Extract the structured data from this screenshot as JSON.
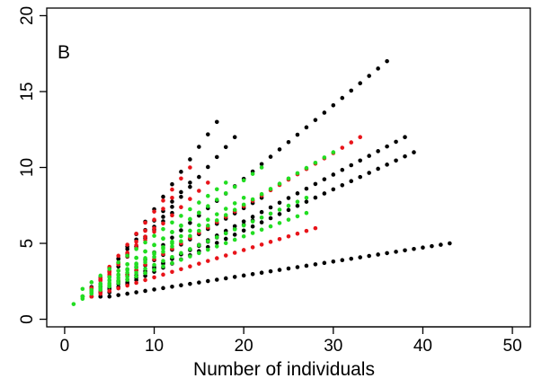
{
  "chart_data": {
    "type": "scatter",
    "panel_label": "B",
    "xlabel": "Number of individuals",
    "ylabel": "",
    "xlim": [
      -2,
      52
    ],
    "ylim": [
      -0.5,
      20.5
    ],
    "xticks": [
      0,
      10,
      20,
      30,
      40,
      50
    ],
    "yticks": [
      0,
      5,
      10,
      15,
      20
    ],
    "grid": false,
    "series": [
      {
        "color": "#000000",
        "lines": [
          {
            "x0": 5,
            "y0": 1.5,
            "x1": 43,
            "y1": 5,
            "n": 39
          },
          {
            "x0": 4,
            "y0": 1.5,
            "x1": 36,
            "y1": 17,
            "n": 33
          },
          {
            "x0": 4,
            "y0": 1.5,
            "x1": 38,
            "y1": 12,
            "n": 35
          },
          {
            "x0": 4,
            "y0": 1.5,
            "x1": 39,
            "y1": 11,
            "n": 36
          },
          {
            "x0": 3,
            "y0": 1.5,
            "x1": 19,
            "y1": 12,
            "n": 17
          },
          {
            "x0": 3,
            "y0": 1.5,
            "x1": 17,
            "y1": 13,
            "n": 15
          },
          {
            "x0": 3,
            "y0": 1.5,
            "x1": 22,
            "y1": 8,
            "n": 20
          },
          {
            "x0": 3,
            "y0": 1.5,
            "x1": 21,
            "y1": 6.5,
            "n": 19
          },
          {
            "x0": 2,
            "y0": 1.5,
            "x1": 14,
            "y1": 9,
            "n": 13
          },
          {
            "x0": 2,
            "y0": 1.5,
            "x1": 12,
            "y1": 7,
            "n": 11
          }
        ]
      },
      {
        "color": "#e8141a",
        "lines": [
          {
            "x0": 3,
            "y0": 1.5,
            "x1": 33,
            "y1": 12,
            "n": 31
          },
          {
            "x0": 3,
            "y0": 1.5,
            "x1": 28,
            "y1": 6,
            "n": 26
          },
          {
            "x0": 3,
            "y0": 2,
            "x1": 14,
            "y1": 10,
            "n": 12
          },
          {
            "x0": 3,
            "y0": 2,
            "x1": 16,
            "y1": 9,
            "n": 14
          },
          {
            "x0": 3,
            "y0": 1.5,
            "x1": 12,
            "y1": 8,
            "n": 10
          },
          {
            "x0": 2,
            "y0": 1.5,
            "x1": 10,
            "y1": 6,
            "n": 9
          }
        ]
      },
      {
        "color": "#22dd22",
        "lines": [
          {
            "x0": 1,
            "y0": 1,
            "x1": 30,
            "y1": 11,
            "n": 30
          },
          {
            "x0": 2,
            "y0": 1.5,
            "x1": 27,
            "y1": 7,
            "n": 26
          },
          {
            "x0": 2,
            "y0": 1.5,
            "x1": 27,
            "y1": 8,
            "n": 26
          },
          {
            "x0": 2,
            "y0": 1.5,
            "x1": 22,
            "y1": 10,
            "n": 21
          },
          {
            "x0": 2,
            "y0": 1.5,
            "x1": 20,
            "y1": 8,
            "n": 19
          },
          {
            "x0": 2,
            "y0": 2,
            "x1": 18,
            "y1": 9,
            "n": 17
          },
          {
            "x0": 2,
            "y0": 1.5,
            "x1": 15,
            "y1": 7,
            "n": 14
          },
          {
            "x0": 2,
            "y0": 1.5,
            "x1": 12,
            "y1": 5,
            "n": 11
          }
        ]
      }
    ]
  }
}
